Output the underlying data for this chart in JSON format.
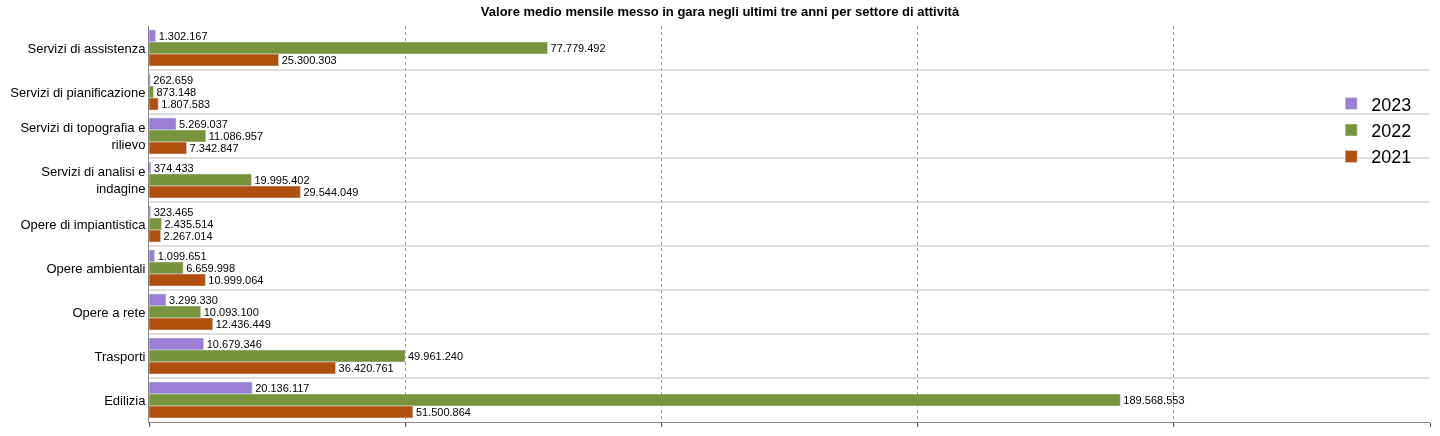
{
  "chart_data": {
    "type": "bar",
    "orientation": "horizontal",
    "title": "Valore medio mensile messo in gara negli ultimi tre anni per settore di attività",
    "categories": [
      "Servizi di assistenza",
      "Servizi di pianificazione",
      "Servizi di topografia e\nrilievo",
      "Servizi di analisi e\nindagine",
      "Opere di impiantistica",
      "Opere ambientali",
      "Opere a rete",
      "Trasporti",
      "Edilizia"
    ],
    "series": [
      {
        "name": "2023",
        "color": "#9b7fd6",
        "values": [
          1302167,
          262659,
          5269037,
          374433,
          323465,
          1099651,
          3299330,
          10679346,
          20136117
        ],
        "value_labels": [
          "1.302.167",
          "262.659",
          "5.269.037",
          "374.433",
          "323.465",
          "1.099.651",
          "3.299.330",
          "10.679.346",
          "20.136.117"
        ]
      },
      {
        "name": "2022",
        "color": "#77933c",
        "values": [
          77779492,
          873148,
          11086957,
          19995402,
          2435514,
          6659998,
          10093100,
          49961240,
          189568553
        ],
        "value_labels": [
          "77.779.492",
          "873.148",
          "11.086.957",
          "19.995.402",
          "2.435.514",
          "6.659.998",
          "10.093.100",
          "49.961.240",
          "189.568.553"
        ]
      },
      {
        "name": "2021",
        "color": "#b0500f",
        "values": [
          25300303,
          1807583,
          7342847,
          29544049,
          2267014,
          10999064,
          12436449,
          36420761,
          51500864
        ],
        "value_labels": [
          "25.300.303",
          "1.807.583",
          "7.342.847",
          "29.544.049",
          "2.267.014",
          "10.999.064",
          "12.436.449",
          "36.420.761",
          "51.500.864"
        ]
      }
    ],
    "xlim": [
      0,
      250000000
    ],
    "xticks": [
      {
        "value": 0,
        "label": null
      },
      {
        "value": 50000000,
        "label": null
      },
      {
        "value": 100000000,
        "label": null
      },
      {
        "value": 150000000,
        "label": null
      },
      {
        "value": 200000000,
        "label": null
      },
      {
        "value": 250000000,
        "label": null
      }
    ],
    "tick_labels": "y",
    "grid": true,
    "legend": "right"
  }
}
